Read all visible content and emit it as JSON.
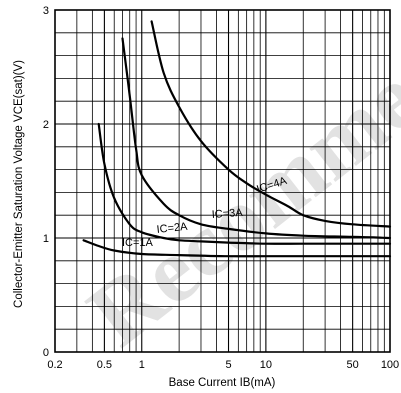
{
  "chart_data": {
    "type": "line",
    "xlabel": "Base Current IB(mA)",
    "ylabel": "Collector-Emitter Saturation Voltage VCE(sat)(V)",
    "xscale": "log",
    "xlim": [
      0.2,
      100
    ],
    "ylim": [
      0,
      3
    ],
    "grid": true,
    "x_tick_labels": [
      "0.2",
      "0.5",
      "1",
      "5",
      "10",
      "50",
      "100"
    ],
    "x_tick_values": [
      0.2,
      0.5,
      1,
      5,
      10,
      50,
      100
    ],
    "y_tick_labels": [
      "0",
      "1",
      "2",
      "3"
    ],
    "y_tick_values": [
      0,
      1,
      2,
      3
    ],
    "series": [
      {
        "name": "IC=1A",
        "x": [
          0.34,
          0.45,
          0.6,
          1,
          2,
          5,
          10,
          20,
          50,
          100
        ],
        "y": [
          0.98,
          0.93,
          0.89,
          0.86,
          0.85,
          0.84,
          0.84,
          0.84,
          0.84,
          0.84
        ]
      },
      {
        "name": "IC=2A",
        "x": [
          0.45,
          0.5,
          0.6,
          0.8,
          1,
          1.5,
          2,
          3,
          5,
          10,
          20,
          50,
          100
        ],
        "y": [
          2.0,
          1.65,
          1.35,
          1.12,
          1.05,
          1.0,
          0.98,
          0.97,
          0.96,
          0.95,
          0.95,
          0.95,
          0.95
        ]
      },
      {
        "name": "IC=3A",
        "x": [
          0.7,
          0.8,
          0.9,
          1,
          1.5,
          2,
          3,
          5,
          10,
          20,
          50,
          100
        ],
        "y": [
          2.75,
          2.25,
          1.78,
          1.55,
          1.3,
          1.2,
          1.12,
          1.08,
          1.04,
          1.02,
          1.01,
          1.0
        ]
      },
      {
        "name": "IC=4A",
        "x": [
          1.2,
          1.5,
          2,
          3,
          5,
          7,
          10,
          15,
          20,
          30,
          50,
          100
        ],
        "y": [
          2.9,
          2.45,
          2.15,
          1.85,
          1.6,
          1.48,
          1.38,
          1.28,
          1.2,
          1.15,
          1.12,
          1.1
        ]
      }
    ],
    "curve_labels": [
      "IC=1A",
      "IC=2A",
      "IC=3A",
      "IC=4A"
    ]
  },
  "watermark": "Recommended for New Design"
}
